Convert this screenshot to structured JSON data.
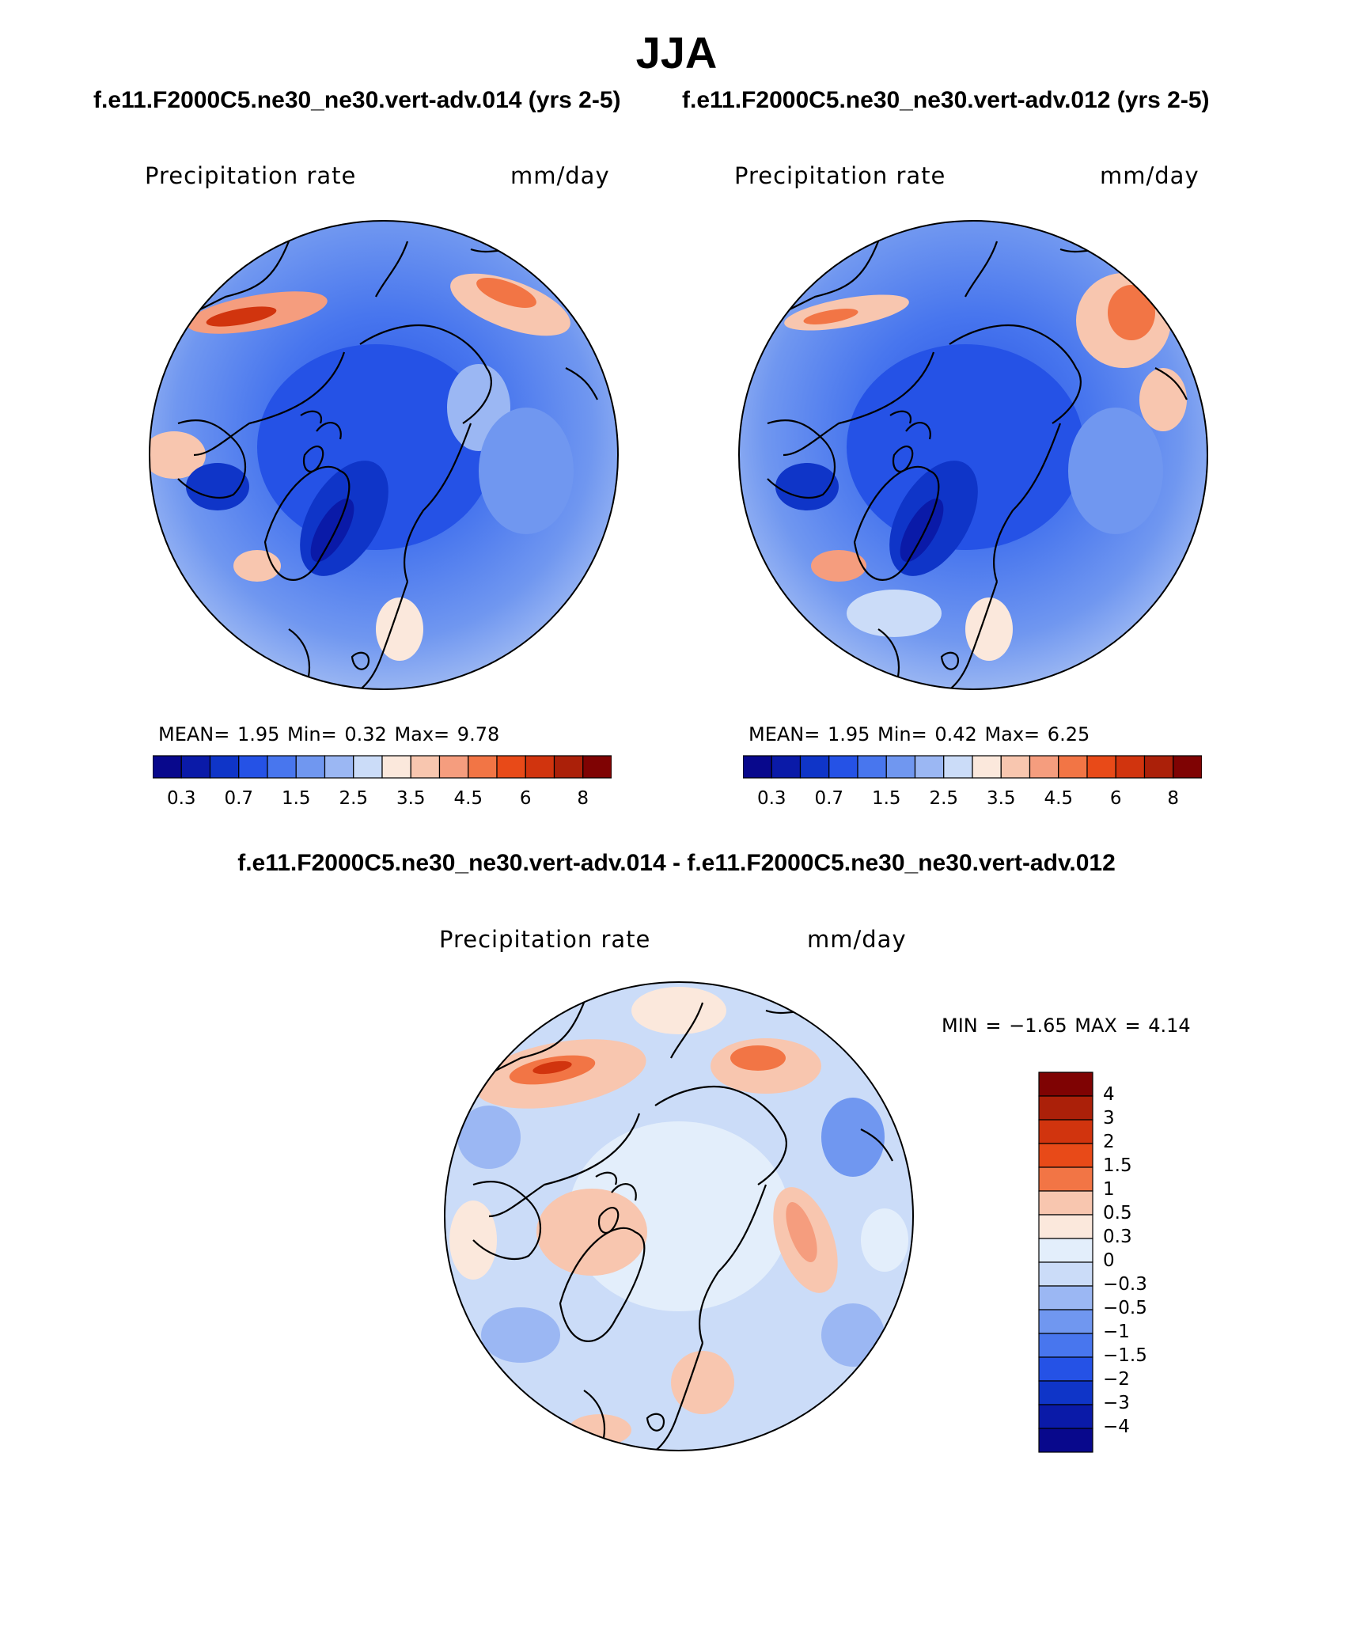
{
  "title": "JJA",
  "panels": [
    {
      "case": "f.e11.F2000C5.ne30_ne30.vert-adv.014 (yrs 2-5)",
      "variable": "Precipitation rate",
      "units": "mm/day",
      "stats": "MEAN=    1.95   Min=    0.32   Max=    9.78",
      "colorbar": {
        "colors": [
          "#08088c",
          "#0a1aa8",
          "#0f35c8",
          "#2552e6",
          "#4876ee",
          "#7097f0",
          "#9bb7f3",
          "#cbdcf8",
          "#fbe8dc",
          "#f8c6af",
          "#f59d7e",
          "#f27545",
          "#e84a18",
          "#d1340e",
          "#ab2009",
          "#7f0303"
        ],
        "labels": [
          "0.3",
          "0.7",
          "1.5",
          "2.5",
          "3.5",
          "4.5",
          "6",
          "8"
        ]
      }
    },
    {
      "case": "f.e11.F2000C5.ne30_ne30.vert-adv.012 (yrs 2-5)",
      "variable": "Precipitation rate",
      "units": "mm/day",
      "stats": "MEAN=    1.95   Min=    0.42   Max=    6.25",
      "colorbar": {
        "colors": [
          "#08088c",
          "#0a1aa8",
          "#0f35c8",
          "#2552e6",
          "#4876ee",
          "#7097f0",
          "#9bb7f3",
          "#cbdcf8",
          "#fbe8dc",
          "#f8c6af",
          "#f59d7e",
          "#f27545",
          "#e84a18",
          "#d1340e",
          "#ab2009",
          "#7f0303"
        ],
        "labels": [
          "0.3",
          "0.7",
          "1.5",
          "2.5",
          "3.5",
          "4.5",
          "6",
          "8"
        ]
      }
    }
  ],
  "difference": {
    "title": "f.e11.F2000C5.ne30_ne30.vert-adv.014 - f.e11.F2000C5.ne30_ne30.vert-adv.012",
    "variable": "Precipitation rate",
    "units": "mm/day",
    "stats": "MIN =   −1.65  MAX =    4.14",
    "colorbar": {
      "colors": [
        "#7f0303",
        "#ab2009",
        "#d1340e",
        "#e84a18",
        "#f27545",
        "#f8c6af",
        "#fbe8dc",
        "#e3eefb",
        "#cbdcf8",
        "#9bb7f3",
        "#7097f0",
        "#4876ee",
        "#2552e6",
        "#0f35c8",
        "#0a1aa8",
        "#08088c"
      ],
      "labels": [
        "4",
        "3",
        "2",
        "1.5",
        "1",
        "0.5",
        "0.3",
        "0",
        "−0.3",
        "−0.5",
        "−1",
        "−1.5",
        "−2",
        "−3",
        "−4"
      ]
    }
  }
}
